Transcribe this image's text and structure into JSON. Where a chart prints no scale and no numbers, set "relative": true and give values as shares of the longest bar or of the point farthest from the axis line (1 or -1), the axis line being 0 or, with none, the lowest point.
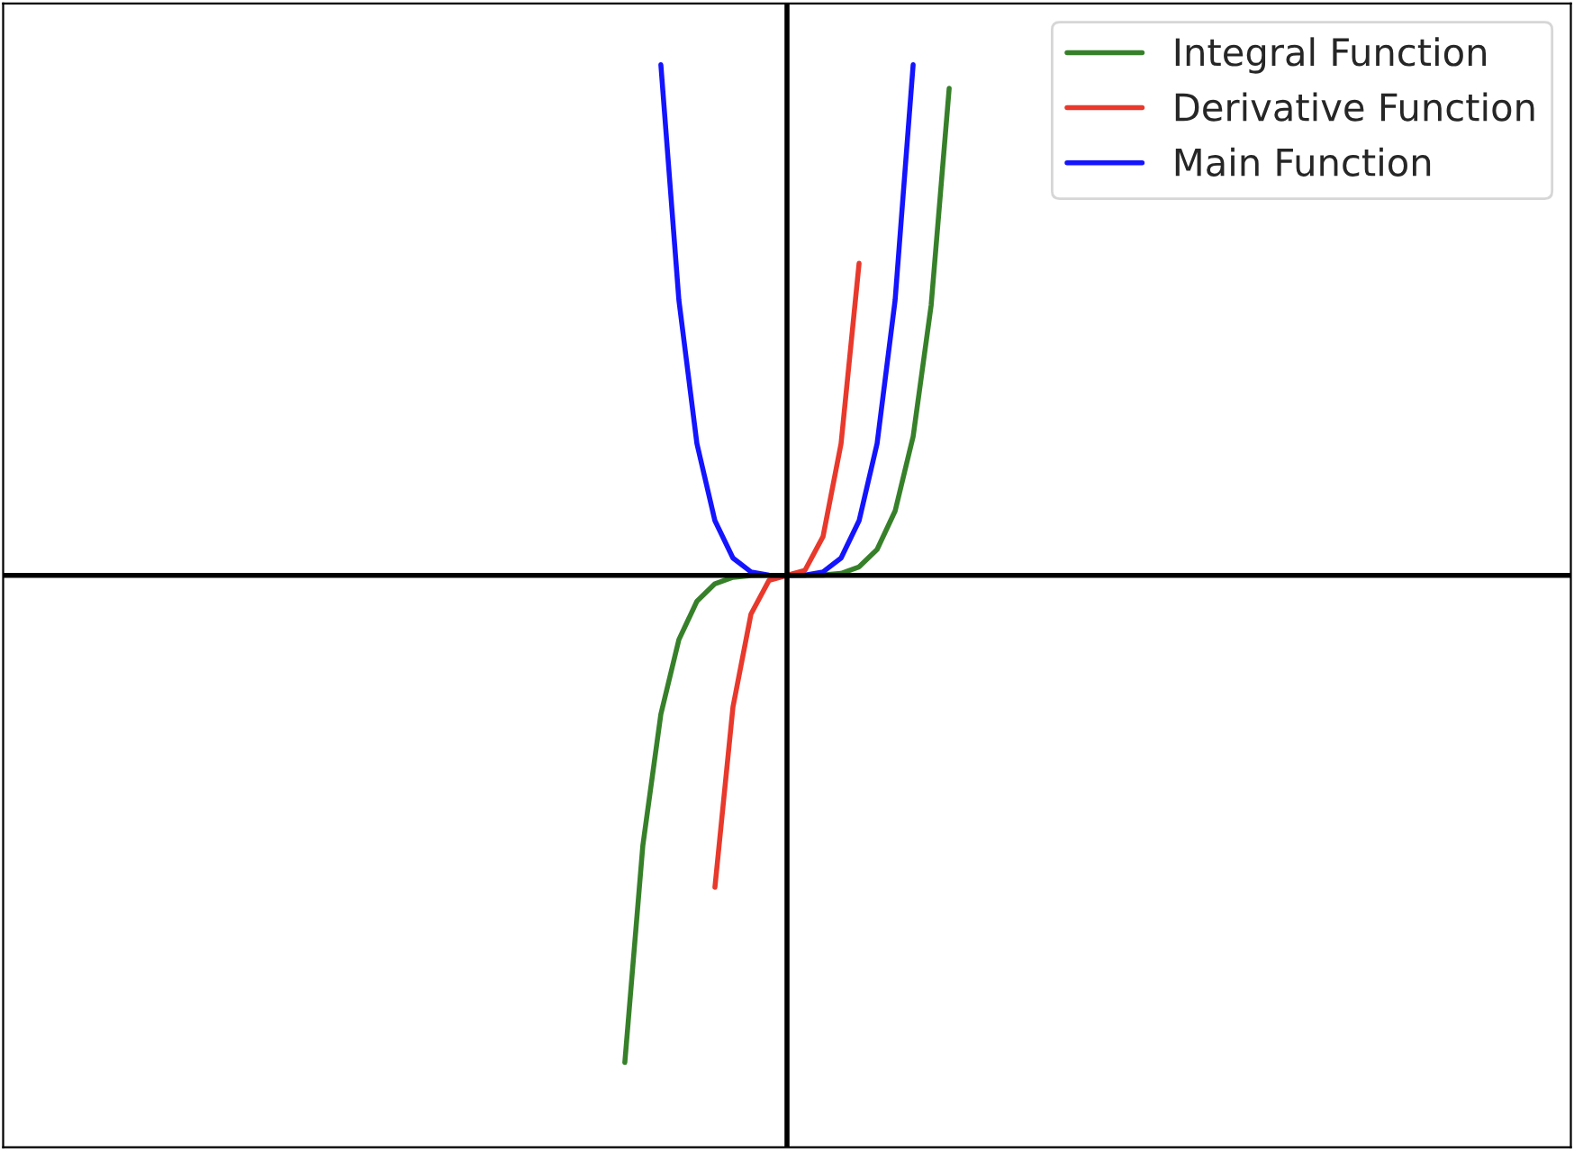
{
  "chart_data": {
    "type": "line",
    "relative": true,
    "legend": "top right",
    "categories": [
      null,
      null,
      null,
      null,
      null,
      null,
      null,
      null,
      null,
      null,
      null,
      null,
      null,
      null,
      null,
      null,
      null,
      null,
      null,
      null,
      null,
      null,
      null,
      null,
      null,
      null,
      null,
      null,
      null,
      null,
      null,
      null,
      null,
      null,
      null,
      null,
      null,
      null,
      null,
      null,
      null,
      null,
      null,
      null,
      null,
      null,
      null,
      null,
      null,
      null,
      null,
      null,
      null,
      null,
      null,
      null,
      null,
      null,
      null,
      null,
      null,
      null,
      null,
      null,
      null,
      null,
      null,
      null,
      null,
      null,
      null,
      null,
      null,
      null,
      null,
      null,
      null,
      null,
      null,
      null,
      null,
      null,
      null,
      null,
      null,
      null,
      null
    ],
    "series": [
      {
        "name": "Integral Function",
        "color": "#37802a",
        "values": [
          null,
          null,
          null,
          null,
          null,
          null,
          null,
          null,
          null,
          null,
          null,
          null,
          null,
          null,
          null,
          null,
          null,
          null,
          null,
          null,
          null,
          null,
          null,
          null,
          null,
          null,
          null,
          null,
          null,
          null,
          null,
          null,
          null,
          null,
          -0.954,
          -0.529,
          -0.272,
          -0.126,
          -0.0507,
          -0.0165,
          -0.0039,
          -0.0006,
          0,
          0,
          0,
          0.0006,
          0.0039,
          0.0165,
          0.0507,
          0.126,
          0.272,
          0.529,
          0.954,
          null,
          null,
          null,
          null,
          null,
          null,
          null,
          null,
          null,
          null,
          null,
          null,
          null,
          null,
          null,
          null,
          null,
          null,
          null,
          null,
          null,
          null,
          null,
          null,
          null,
          null,
          null,
          null,
          null,
          null,
          null,
          null,
          null,
          null
        ]
      },
      {
        "name": "Derivative Function",
        "color": "#e8392c",
        "values": [
          null,
          null,
          null,
          null,
          null,
          null,
          null,
          null,
          null,
          null,
          null,
          null,
          null,
          null,
          null,
          null,
          null,
          null,
          null,
          null,
          null,
          null,
          null,
          null,
          null,
          null,
          null,
          null,
          null,
          null,
          null,
          null,
          null,
          null,
          null,
          null,
          null,
          null,
          null,
          -0.611,
          -0.258,
          -0.076,
          -0.01,
          0,
          0.01,
          0.076,
          0.258,
          0.611,
          null,
          null,
          null,
          null,
          null,
          null,
          null,
          null,
          null,
          null,
          null,
          null,
          null,
          null,
          null,
          null,
          null,
          null,
          null,
          null,
          null,
          null,
          null,
          null,
          null,
          null,
          null,
          null,
          null,
          null,
          null,
          null,
          null,
          null,
          null,
          null,
          null,
          null,
          null
        ]
      },
      {
        "name": "Main Function",
        "color": "#1414ff",
        "values": [
          null,
          null,
          null,
          null,
          null,
          null,
          null,
          null,
          null,
          null,
          null,
          null,
          null,
          null,
          null,
          null,
          null,
          null,
          null,
          null,
          null,
          null,
          null,
          null,
          null,
          null,
          null,
          null,
          null,
          null,
          null,
          null,
          null,
          null,
          null,
          null,
          1,
          0.539,
          0.258,
          0.107,
          0.034,
          0.0067,
          0.0004,
          0,
          0.0004,
          0.0067,
          0.034,
          0.107,
          0.258,
          0.539,
          1,
          null,
          null,
          null,
          null,
          null,
          null,
          null,
          null,
          null,
          null,
          null,
          null,
          null,
          null,
          null,
          null,
          null,
          null,
          null,
          null,
          null,
          null,
          null,
          null,
          null,
          null,
          null,
          null,
          null,
          null,
          null,
          null,
          null,
          null,
          null,
          null
        ]
      }
    ]
  }
}
